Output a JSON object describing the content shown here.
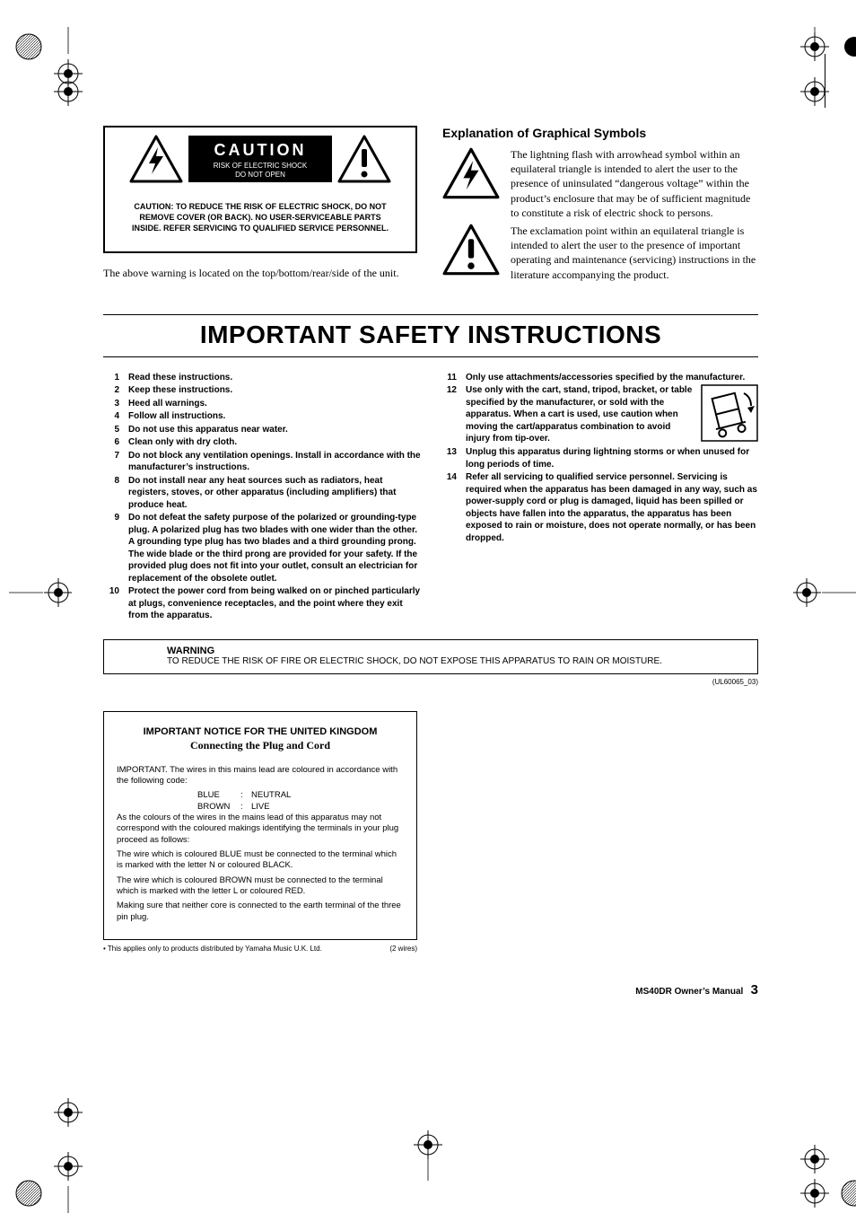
{
  "colors": {
    "text": "#000000",
    "bg": "#ffffff",
    "black": "#000000",
    "white": "#ffffff"
  },
  "caution": {
    "heading": "CAUTION",
    "risk_line1": "RISK OF ELECTRIC SHOCK",
    "risk_line2": "DO NOT OPEN",
    "body": "CAUTION: TO REDUCE THE RISK OF ELECTRIC SHOCK, DO NOT REMOVE COVER (OR BACK). NO USER-SERVICEABLE PARTS INSIDE. REFER SERVICING TO QUALIFIED SERVICE PERSONNEL.",
    "location_note": "The above warning is located on the top/bottom/rear/side of the unit."
  },
  "explanation": {
    "title": "Explanation of Graphical Symbols",
    "bolt_text": "The lightning flash with arrowhead symbol within an equilateral triangle is intended to alert the user to the presence of uninsulated “dangerous voltage” within the product’s enclosure that may be of sufficient magnitude to constitute a risk of electric shock to persons.",
    "excl_text": "The exclamation point within an equilateral triangle is intended to alert the user to the presence of important operating and maintenance (servicing) instructions in the literature accompanying the product."
  },
  "main_title": "IMPORTANT SAFETY INSTRUCTIONS",
  "instructions_left": [
    {
      "n": "1",
      "t": "Read these instructions."
    },
    {
      "n": "2",
      "t": "Keep these instructions."
    },
    {
      "n": "3",
      "t": "Heed all warnings."
    },
    {
      "n": "4",
      "t": "Follow all instructions."
    },
    {
      "n": "5",
      "t": "Do not use this apparatus near water."
    },
    {
      "n": "6",
      "t": "Clean only with dry cloth."
    },
    {
      "n": "7",
      "t": "Do not block any ventilation openings. Install in accordance with the manufacturer’s instructions."
    },
    {
      "n": "8",
      "t": "Do not install near any heat sources such as radiators, heat registers, stoves, or other apparatus (including amplifiers) that produce heat."
    },
    {
      "n": "9",
      "t": "Do not defeat the safety purpose of the polarized or grounding-type plug. A polarized plug has two blades with one wider than the other. A grounding type plug has two blades and a third grounding prong. The wide blade or the third prong are provided for your safety. If the provided plug does not fit into your outlet, consult an electrician for replacement of the obsolete outlet."
    },
    {
      "n": "10",
      "t": "Protect the power cord from being walked on or pinched particularly at plugs, convenience receptacles, and the point where they exit from the apparatus."
    }
  ],
  "instructions_right": [
    {
      "n": "11",
      "t": "Only use attachments/accessories specified by the manufacturer."
    },
    {
      "n": "12",
      "t": "Use only with the cart, stand, tripod, bracket, or table specified by the manufacturer, or sold with the apparatus. When a cart is used, use caution when moving the cart/apparatus combination to avoid injury from tip-over.",
      "cart": true
    },
    {
      "n": "13",
      "t": "Unplug this apparatus during lightning storms or when unused for long periods of time."
    },
    {
      "n": "14",
      "t": "Refer all servicing to qualified service personnel. Servicing is required when the apparatus has been damaged in any way, such as power-supply cord or plug is damaged, liquid has been spilled or objects have fallen into the apparatus, the apparatus has been exposed to rain or moisture, does not operate normally, or has been dropped."
    }
  ],
  "warning_box": {
    "label": "WARNING",
    "text": "TO REDUCE THE RISK OF FIRE OR ELECTRIC SHOCK, DO NOT EXPOSE THIS APPARATUS TO RAIN OR MOISTURE."
  },
  "ul_code": "(UL60065_03)",
  "uk": {
    "title1": "IMPORTANT NOTICE FOR THE UNITED KINGDOM",
    "title2": "Connecting the Plug and Cord",
    "p1": "IMPORTANT.  The wires in this mains lead are coloured in accordance with the following code:",
    "wires": [
      {
        "c": "BLUE",
        "v": "NEUTRAL"
      },
      {
        "c": "BROWN",
        "v": "LIVE"
      }
    ],
    "p2": "As the colours of the wires in the mains lead of this apparatus may not correspond with the coloured makings identifying the terminals in your plug proceed as follows:",
    "p3": "The wire which is coloured BLUE must be connected to the terminal which is marked with the letter N or coloured BLACK.",
    "p4": "The wire which is coloured BROWN must be connected to the terminal which is marked with the letter L or coloured RED.",
    "p5": "Making sure that neither core is connected to the earth terminal of the three pin plug.",
    "footer_left": "• This applies only to products distributed by Yamaha Music U.K. Ltd.",
    "footer_right": "(2 wires)"
  },
  "footer": {
    "manual": "MS40DR  Owner’s Manual",
    "page": "3"
  }
}
